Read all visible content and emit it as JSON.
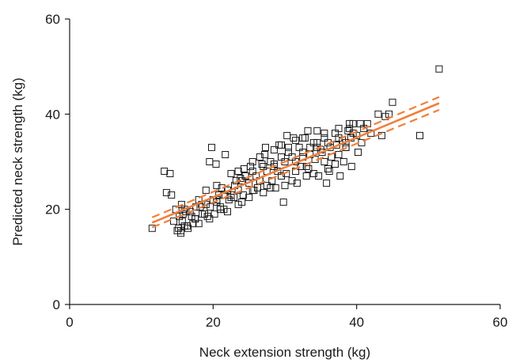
{
  "chart_data": {
    "type": "scatter",
    "title": "",
    "xlabel": "Neck extension strength (kg)",
    "ylabel": "Predicted neck strength (kg)",
    "xlim": [
      0,
      60
    ],
    "ylim": [
      0,
      60
    ],
    "xticks": [
      "0",
      "20",
      "40",
      "60"
    ],
    "yticks": [
      "0",
      "20",
      "40",
      "60"
    ],
    "grid": false,
    "legend": "none",
    "colors": {
      "points": "#1a1a1a",
      "regression": "#f07f3c",
      "axes": "#1a1a1a"
    },
    "regression": {
      "fit": {
        "x": [
          11.5,
          51.5
        ],
        "y": [
          17.2,
          42.3
        ]
      },
      "ci_upper": {
        "x": [
          11.5,
          51.5
        ],
        "y": [
          18.3,
          43.6
        ]
      },
      "ci_lower": {
        "x": [
          11.5,
          51.5
        ],
        "y": [
          16.2,
          40.9
        ]
      }
    },
    "series": [
      {
        "x": [
          11.5,
          13.2,
          13.5,
          14.2,
          14.8,
          14.5,
          15.2,
          15.5,
          15.8,
          15.3,
          15.6,
          16.0,
          16.4,
          16.8,
          17.2,
          17.6,
          18.0,
          18.4,
          18.8,
          19.2,
          19.6,
          20.0,
          20.5,
          21.0,
          21.5,
          22.0,
          22.5,
          23.0,
          23.5,
          24.0,
          24.5,
          25.0,
          25.5,
          26.0,
          26.5,
          27.0,
          27.5,
          28.0,
          28.5,
          29.0,
          29.5,
          30.0,
          30.5,
          31.0,
          31.5,
          32.0,
          32.5,
          33.0,
          33.5,
          34.0,
          34.5,
          35.0,
          35.5,
          36.0,
          36.5,
          37.0,
          37.5,
          38.0,
          38.5,
          39.0,
          39.5,
          40.0,
          40.5,
          41.0,
          42.0,
          43.0,
          44.0,
          45.0,
          15.5,
          16.5,
          17.5,
          18.5,
          19.5,
          20.5,
          21.5,
          22.5,
          23.5,
          24.5,
          25.5,
          26.5,
          27.5,
          28.5,
          29.5,
          30.5,
          31.5,
          32.5,
          33.5,
          34.5,
          35.5,
          36.5,
          37.5,
          38.5,
          39.5,
          15.0,
          15.7,
          16.2,
          17.0,
          18.0,
          19.0,
          20.2,
          21.2,
          22.2,
          23.2,
          24.2,
          25.2,
          26.2,
          27.2,
          28.2,
          29.2,
          30.2,
          31.2,
          32.2,
          33.2,
          34.2,
          35.2,
          36.2,
          37.2,
          38.2,
          39.2,
          40.2,
          16.0,
          17.5,
          19.0,
          20.5,
          22.0,
          23.5,
          25.0,
          26.5,
          28.0,
          29.5,
          31.0,
          32.5,
          34.0,
          35.5,
          37.0,
          38.5,
          19.5,
          21.0,
          22.5,
          24.0,
          25.5,
          27.0,
          28.5,
          30.0,
          31.5,
          33.0,
          34.5,
          36.0,
          37.5,
          39.0,
          14.0,
          18.2,
          20.8,
          23.8,
          26.8,
          29.8,
          32.8,
          35.8,
          38.8,
          41.5,
          43.5,
          44.5,
          48.8,
          51.5,
          19.8,
          20.4,
          21.7,
          22.9,
          24.3,
          25.7,
          27.3,
          28.7,
          30.3,
          31.7,
          33.3,
          34.7,
          36.3,
          37.7,
          39.3,
          40.7
        ],
        "y": [
          16.0,
          28.0,
          23.5,
          23.0,
          20.0,
          17.5,
          16.0,
          15.5,
          19.0,
          18.5,
          21.0,
          20.0,
          16.5,
          19.5,
          17.0,
          20.5,
          22.0,
          21.0,
          19.0,
          18.5,
          20.5,
          22.0,
          21.5,
          20.0,
          23.0,
          24.0,
          22.5,
          25.0,
          24.0,
          26.0,
          27.0,
          25.5,
          28.0,
          27.0,
          26.0,
          29.0,
          28.0,
          30.0,
          29.5,
          28.0,
          31.0,
          30.0,
          32.0,
          31.0,
          30.0,
          33.0,
          32.0,
          29.0,
          31.5,
          34.0,
          33.0,
          32.5,
          35.0,
          34.0,
          31.0,
          36.0,
          35.0,
          34.5,
          33.0,
          37.0,
          36.0,
          35.5,
          38.0,
          37.0,
          36.0,
          40.0,
          39.5,
          42.5,
          15.0,
          16.0,
          18.0,
          19.0,
          18.0,
          22.0,
          20.0,
          23.0,
          21.0,
          27.0,
          24.0,
          26.0,
          25.0,
          29.0,
          27.0,
          33.0,
          28.0,
          31.0,
          33.0,
          34.0,
          30.0,
          31.0,
          37.0,
          33.0,
          38.0,
          15.5,
          17.5,
          19.5,
          18.5,
          17.0,
          21.0,
          19.0,
          24.5,
          22.0,
          26.0,
          23.0,
          29.0,
          24.5,
          31.5,
          26.0,
          33.5,
          27.5,
          35.0,
          29.0,
          36.5,
          30.5,
          32.0,
          28.0,
          33.5,
          30.0,
          35.0,
          32.0,
          16.5,
          18.0,
          24.0,
          25.0,
          19.5,
          28.0,
          22.5,
          31.0,
          24.5,
          33.5,
          26.0,
          35.0,
          27.5,
          36.0,
          29.5,
          34.0,
          30.0,
          20.5,
          27.5,
          21.5,
          30.0,
          23.5,
          32.5,
          25.0,
          34.5,
          27.0,
          36.5,
          28.5,
          31.5,
          38.0,
          27.5,
          20.5,
          23.0,
          26.5,
          29.5,
          21.5,
          35.0,
          25.5,
          36.5,
          38.0,
          35.5,
          40.0,
          35.5,
          49.5,
          33.0,
          29.5,
          31.5,
          22.5,
          28.5,
          24.0,
          33.0,
          24.5,
          35.5,
          25.5,
          28.5,
          27.0,
          33.0,
          27.0,
          29.0,
          34.0
        ]
      }
    ]
  }
}
